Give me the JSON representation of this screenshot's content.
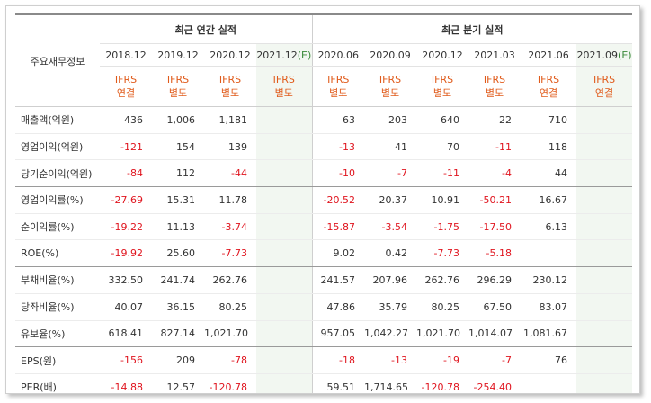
{
  "header": {
    "row_label": "주요재무정보",
    "annual_title": "최근 연간 실적",
    "quarterly_title": "최근 분기 실적"
  },
  "periods": [
    {
      "label": "2018.12",
      "est": "",
      "ifrs": "IFRS",
      "basis": "연결",
      "estimate": false
    },
    {
      "label": "2019.12",
      "est": "",
      "ifrs": "IFRS",
      "basis": "별도",
      "estimate": false
    },
    {
      "label": "2020.12",
      "est": "",
      "ifrs": "IFRS",
      "basis": "별도",
      "estimate": false
    },
    {
      "label": "2021.12",
      "est": "(E)",
      "ifrs": "IFRS",
      "basis": "별도",
      "estimate": true
    },
    {
      "label": "2020.06",
      "est": "",
      "ifrs": "IFRS",
      "basis": "별도",
      "estimate": false
    },
    {
      "label": "2020.09",
      "est": "",
      "ifrs": "IFRS",
      "basis": "별도",
      "estimate": false
    },
    {
      "label": "2020.12",
      "est": "",
      "ifrs": "IFRS",
      "basis": "별도",
      "estimate": false
    },
    {
      "label": "2021.03",
      "est": "",
      "ifrs": "IFRS",
      "basis": "별도",
      "estimate": false
    },
    {
      "label": "2021.06",
      "est": "",
      "ifrs": "IFRS",
      "basis": "연결",
      "estimate": false
    },
    {
      "label": "2021.09",
      "est": "(E)",
      "ifrs": "IFRS",
      "basis": "연결",
      "estimate": true
    }
  ],
  "rows": [
    {
      "label": "매출액(억원)",
      "values": [
        "436",
        "1,006",
        "1,181",
        "",
        "63",
        "203",
        "640",
        "22",
        "710",
        ""
      ]
    },
    {
      "label": "영업이익(억원)",
      "values": [
        "-121",
        "154",
        "139",
        "",
        "-13",
        "41",
        "70",
        "-11",
        "118",
        ""
      ]
    },
    {
      "label": "당기순이익(억원)",
      "values": [
        "-84",
        "112",
        "-44",
        "",
        "-10",
        "-7",
        "-11",
        "-4",
        "44",
        ""
      ]
    },
    {
      "label": "영업이익률(%)",
      "values": [
        "-27.69",
        "15.31",
        "11.78",
        "",
        "-20.52",
        "20.37",
        "10.91",
        "-50.21",
        "16.67",
        ""
      ]
    },
    {
      "label": "순이익률(%)",
      "values": [
        "-19.22",
        "11.13",
        "-3.74",
        "",
        "-15.87",
        "-3.54",
        "-1.75",
        "-17.50",
        "6.13",
        ""
      ]
    },
    {
      "label": "ROE(%)",
      "values": [
        "-19.92",
        "25.60",
        "-7.73",
        "",
        "9.02",
        "0.42",
        "-7.73",
        "-5.18",
        "",
        ""
      ]
    },
    {
      "label": "부채비율(%)",
      "values": [
        "332.50",
        "241.74",
        "262.76",
        "",
        "241.57",
        "207.96",
        "262.76",
        "296.29",
        "230.12",
        ""
      ]
    },
    {
      "label": "당좌비율(%)",
      "values": [
        "40.07",
        "36.15",
        "80.25",
        "",
        "47.86",
        "35.79",
        "80.25",
        "67.50",
        "83.07",
        ""
      ]
    },
    {
      "label": "유보율(%)",
      "values": [
        "618.41",
        "827.14",
        "1,021.70",
        "",
        "957.05",
        "1,042.27",
        "1,021.70",
        "1,014.07",
        "1,081.67",
        ""
      ]
    },
    {
      "label": "EPS(원)",
      "values": [
        "-156",
        "209",
        "-78",
        "",
        "-18",
        "-13",
        "-19",
        "-7",
        "76",
        ""
      ]
    },
    {
      "label": "PER(배)",
      "values": [
        "-14.88",
        "12.57",
        "-120.78",
        "",
        "59.51",
        "1,714.65",
        "-120.78",
        "-254.40",
        "",
        ""
      ]
    }
  ],
  "colors": {
    "negative": "#e0151f",
    "ifrs": "#e05a1a",
    "estimate_bg": "#f2f7f1",
    "estimate_mark": "#3a8a3a"
  }
}
